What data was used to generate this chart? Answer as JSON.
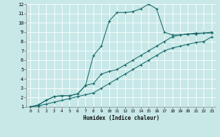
{
  "xlabel": "Humidex (Indice chaleur)",
  "xlim": [
    -0.5,
    23.5
  ],
  "ylim": [
    1,
    12
  ],
  "xticks": [
    0,
    1,
    2,
    3,
    4,
    5,
    6,
    7,
    8,
    9,
    10,
    11,
    12,
    13,
    14,
    15,
    16,
    17,
    18,
    19,
    20,
    21,
    22,
    23
  ],
  "yticks": [
    1,
    2,
    3,
    4,
    5,
    6,
    7,
    8,
    9,
    10,
    11,
    12
  ],
  "bg_color": "#c8e8e8",
  "grid_color": "#b0d8d8",
  "line_color": "#1a6b6b",
  "line1_x": [
    0,
    1,
    2,
    3,
    4,
    5,
    6,
    7,
    8,
    9,
    10,
    11,
    12,
    13,
    14,
    15,
    16,
    17,
    18,
    19,
    20,
    21,
    22,
    23
  ],
  "line1_y": [
    1.0,
    1.2,
    1.7,
    2.1,
    2.2,
    2.2,
    2.4,
    3.3,
    3.5,
    4.5,
    4.8,
    5.0,
    5.5,
    6.0,
    6.5,
    7.0,
    7.5,
    8.0,
    8.5,
    8.7,
    8.8,
    8.9,
    8.9,
    9.0
  ],
  "line2_x": [
    0,
    1,
    2,
    3,
    4,
    5,
    6,
    7,
    8,
    9,
    10,
    11,
    12,
    13,
    14,
    15,
    16,
    17,
    18,
    19,
    20,
    21,
    22,
    23
  ],
  "line2_y": [
    1.0,
    1.1,
    1.3,
    1.5,
    1.7,
    1.9,
    2.1,
    2.3,
    2.5,
    3.0,
    3.5,
    4.0,
    4.5,
    5.0,
    5.5,
    6.0,
    6.5,
    7.0,
    7.3,
    7.5,
    7.7,
    7.9,
    8.0,
    8.5
  ],
  "line3_x": [
    0,
    1,
    2,
    3,
    4,
    5,
    6,
    7,
    8,
    9,
    10,
    11,
    12,
    13,
    14,
    15,
    16,
    17,
    18,
    19,
    20,
    21,
    22,
    23
  ],
  "line3_y": [
    1.0,
    1.2,
    1.7,
    2.1,
    2.2,
    2.2,
    2.4,
    3.3,
    6.5,
    7.5,
    10.2,
    11.1,
    11.1,
    11.2,
    11.5,
    12.0,
    11.5,
    9.0,
    8.7,
    8.7,
    8.8,
    8.8,
    8.9,
    8.9
  ]
}
